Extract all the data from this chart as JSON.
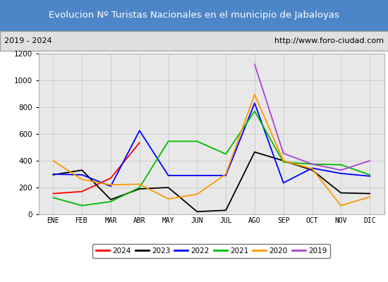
{
  "title": "Evolucion Nº Turistas Nacionales en el municipio de Jabaloyas",
  "subtitle_left": "2019 - 2024",
  "subtitle_right": "http://www.foro-ciudad.com",
  "title_bg_color": "#4d86c8",
  "title_text_color": "#ffffff",
  "subtitle_bg_color": "#e0e0e0",
  "plot_bg_color": "#e8e8e8",
  "fig_bg_color": "#ffffff",
  "months": [
    "ENE",
    "FEB",
    "MAR",
    "ABR",
    "MAY",
    "JUN",
    "JUL",
    "AGO",
    "SEP",
    "OCT",
    "NOV",
    "DIC"
  ],
  "ylim": [
    0,
    1200
  ],
  "yticks": [
    0,
    200,
    400,
    600,
    800,
    1000,
    1200
  ],
  "series": {
    "2024": {
      "color": "#ff0000",
      "values": [
        155,
        170,
        270,
        535,
        null,
        null,
        null,
        null,
        null,
        null,
        null,
        null
      ]
    },
    "2023": {
      "color": "#000000",
      "values": [
        295,
        330,
        110,
        190,
        200,
        20,
        30,
        465,
        400,
        330,
        160,
        155
      ]
    },
    "2022": {
      "color": "#0000ff",
      "values": [
        300,
        295,
        210,
        625,
        290,
        290,
        290,
        830,
        235,
        345,
        305,
        285
      ]
    },
    "2021": {
      "color": "#00bb00",
      "values": [
        125,
        65,
        95,
        200,
        545,
        545,
        450,
        770,
        390,
        375,
        370,
        295
      ]
    },
    "2020": {
      "color": "#ff9900",
      "values": [
        400,
        260,
        220,
        225,
        115,
        150,
        300,
        895,
        400,
        340,
        65,
        130
      ]
    },
    "2019": {
      "color": "#aa44cc",
      "values": [
        null,
        null,
        null,
        null,
        null,
        null,
        null,
        1120,
        455,
        375,
        330,
        400
      ]
    }
  },
  "legend_order": [
    "2024",
    "2023",
    "2022",
    "2021",
    "2020",
    "2019"
  ]
}
